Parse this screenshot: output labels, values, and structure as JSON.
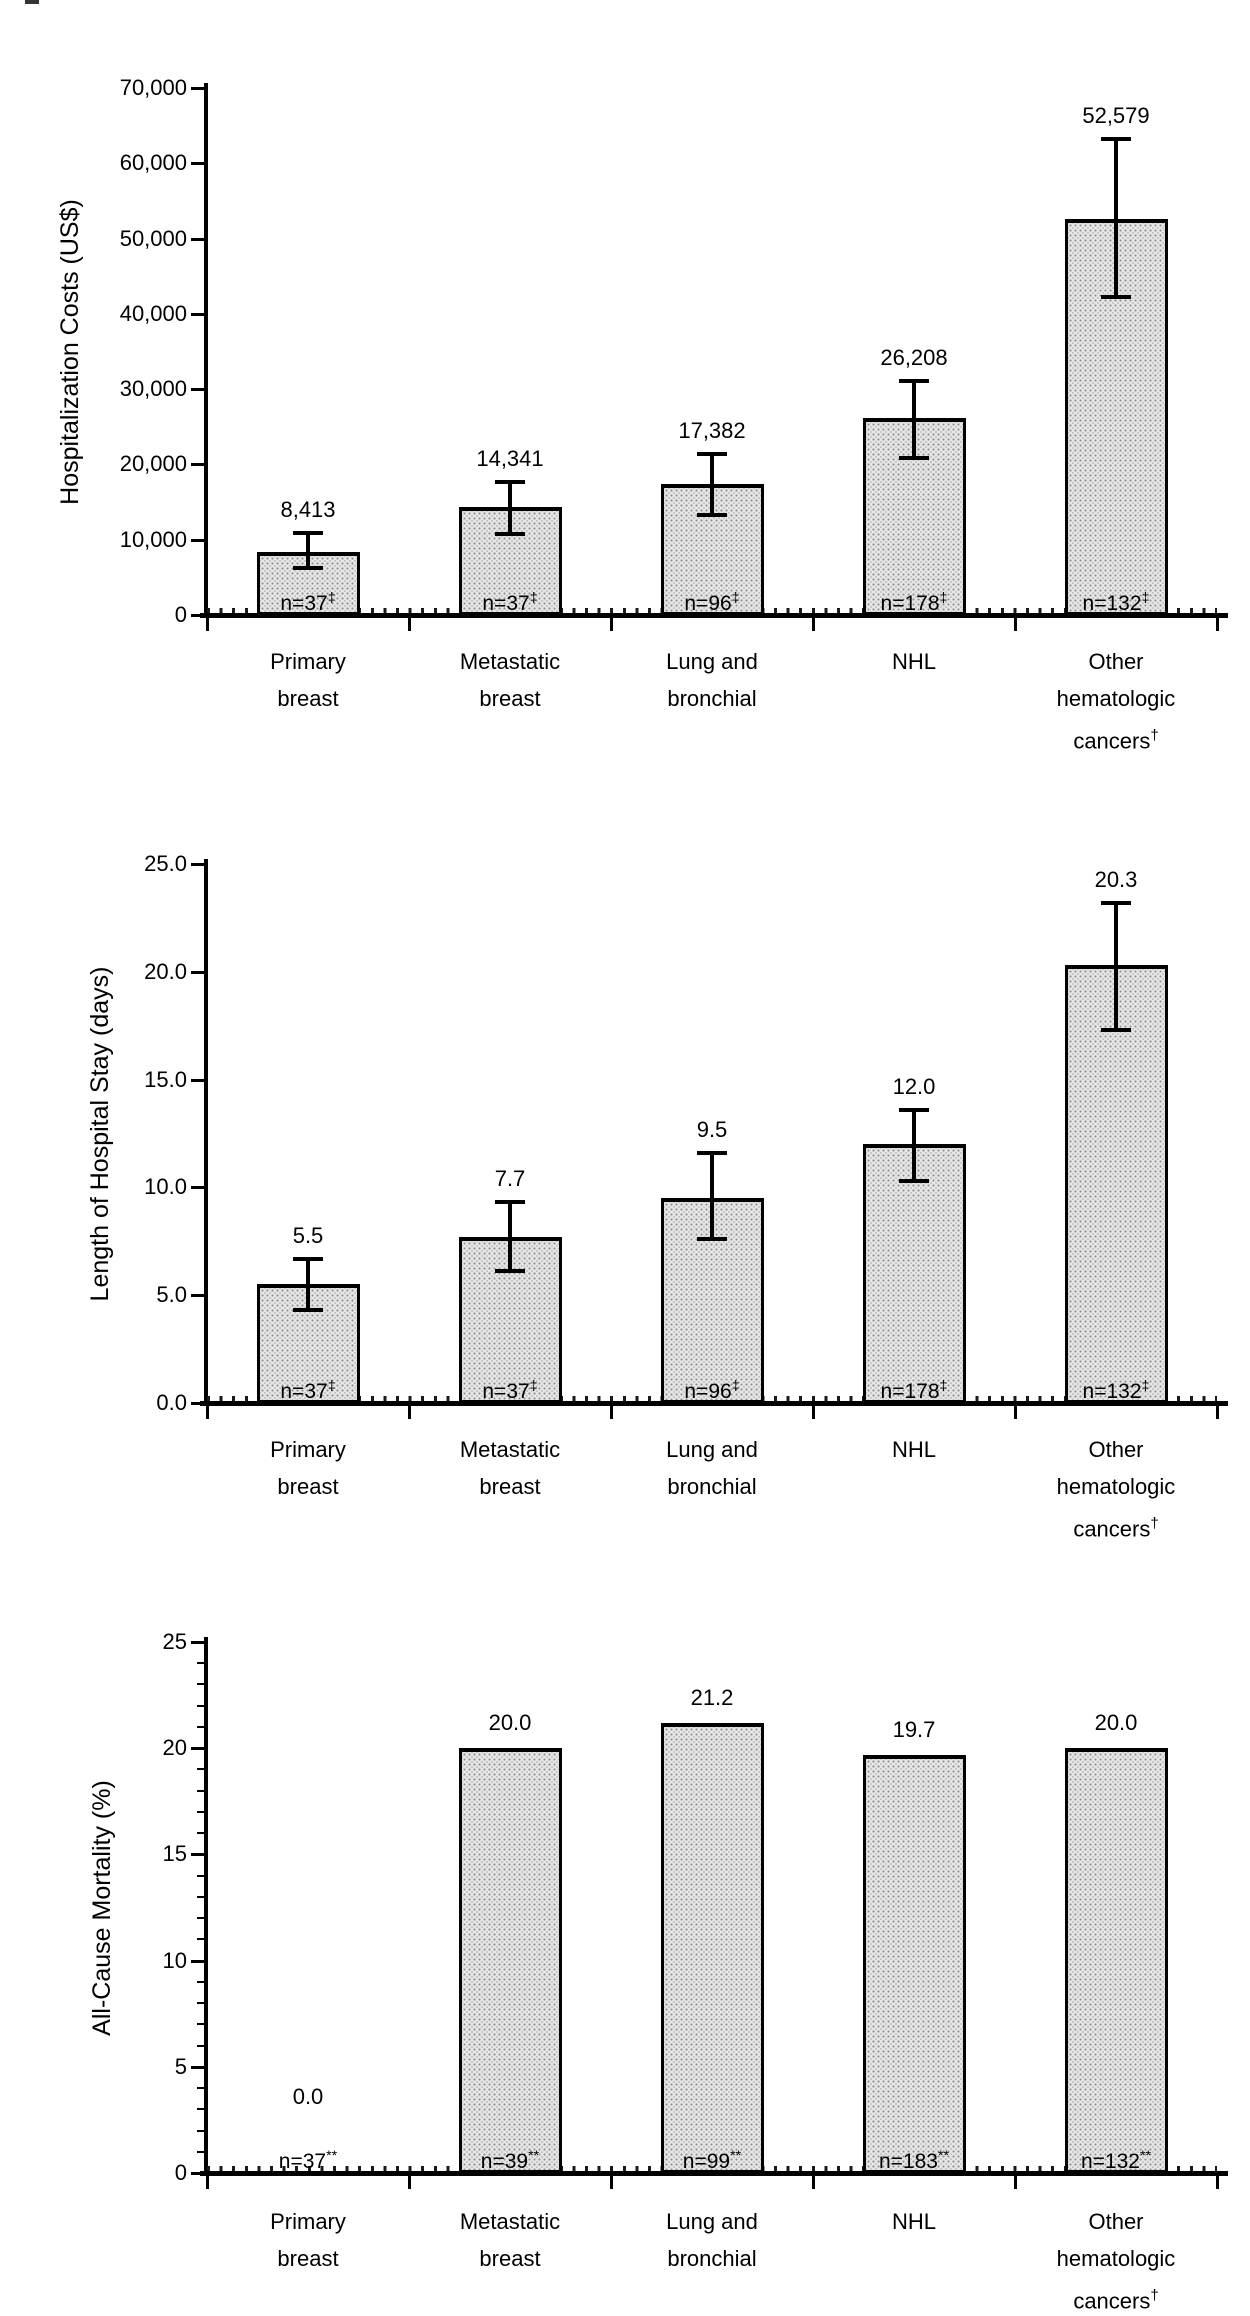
{
  "figure_background": "#ffffff",
  "bar_fill_color": "#e6e6e6",
  "bar_dot_color": "#8f8f8f",
  "axis_color": "#000000",
  "chart_data": [
    {
      "type": "bar",
      "ylabel": "Hospitalization Costs (US$)",
      "ylim": [
        0,
        70000
      ],
      "ytick_step": 10000,
      "ytick_labels": [
        "0",
        "10,000",
        "20,000",
        "30,000",
        "40,000",
        "50,000",
        "60,000",
        "70,000"
      ],
      "minor_ytick_step": null,
      "grid": "off",
      "categories": [
        [
          "Primary",
          "breast"
        ],
        [
          "Metastatic",
          "breast"
        ],
        [
          "Lung and",
          "bronchial"
        ],
        [
          "NHL"
        ],
        [
          "Other",
          "hematologic",
          "cancers†"
        ]
      ],
      "values": [
        8413,
        14341,
        17382,
        26208,
        52579
      ],
      "value_labels": [
        "8,413",
        "14,341",
        "17,382",
        "26,208",
        "52,579"
      ],
      "error_low": [
        6200,
        10700,
        13300,
        20800,
        42200
      ],
      "error_high": [
        10900,
        17700,
        21400,
        31100,
        63200
      ],
      "n_labels": [
        "n=37",
        "n=37",
        "n=96",
        "n=178",
        "n=132"
      ],
      "n_superscript": "‡"
    },
    {
      "type": "bar",
      "ylabel": "Length of Hospital Stay (days)",
      "ylim": [
        0,
        25
      ],
      "ytick_step": 5,
      "ytick_labels": [
        "0.0",
        "5.0",
        "10.0",
        "15.0",
        "20.0",
        "25.0"
      ],
      "minor_ytick_step": null,
      "grid": "off",
      "categories": [
        [
          "Primary",
          "breast"
        ],
        [
          "Metastatic",
          "breast"
        ],
        [
          "Lung and",
          "bronchial"
        ],
        [
          "NHL"
        ],
        [
          "Other",
          "hematologic",
          "cancers†"
        ]
      ],
      "values": [
        5.5,
        7.7,
        9.5,
        12.0,
        20.3
      ],
      "value_labels": [
        "5.5",
        "7.7",
        "9.5",
        "12.0",
        "20.3"
      ],
      "error_low": [
        4.3,
        6.1,
        7.6,
        10.3,
        17.3
      ],
      "error_high": [
        6.7,
        9.3,
        11.6,
        13.6,
        23.2
      ],
      "n_labels": [
        "n=37",
        "n=37",
        "n=96",
        "n=178",
        "n=132"
      ],
      "n_superscript": "‡"
    },
    {
      "type": "bar",
      "ylabel": "All-Cause Mortality (%)",
      "ylim": [
        0,
        25
      ],
      "ytick_step": 5,
      "ytick_labels": [
        "0",
        "5",
        "10",
        "15",
        "20",
        "25"
      ],
      "minor_ytick_step": 1,
      "grid": "off",
      "categories": [
        [
          "Primary",
          "breast"
        ],
        [
          "Metastatic",
          "breast"
        ],
        [
          "Lung and",
          "bronchial"
        ],
        [
          "NHL"
        ],
        [
          "Other",
          "hematologic",
          "cancers†"
        ]
      ],
      "values": [
        0.0,
        20.0,
        21.2,
        19.7,
        20.0
      ],
      "value_labels": [
        "0.0",
        "20.0",
        "21.2",
        "19.7",
        "20.0"
      ],
      "error_low": [
        null,
        null,
        null,
        null,
        null
      ],
      "error_high": [
        null,
        null,
        null,
        null,
        null
      ],
      "n_labels": [
        "n=37",
        "n=39",
        "n=99",
        "n=183",
        "n=132"
      ],
      "n_superscript": "**"
    }
  ]
}
